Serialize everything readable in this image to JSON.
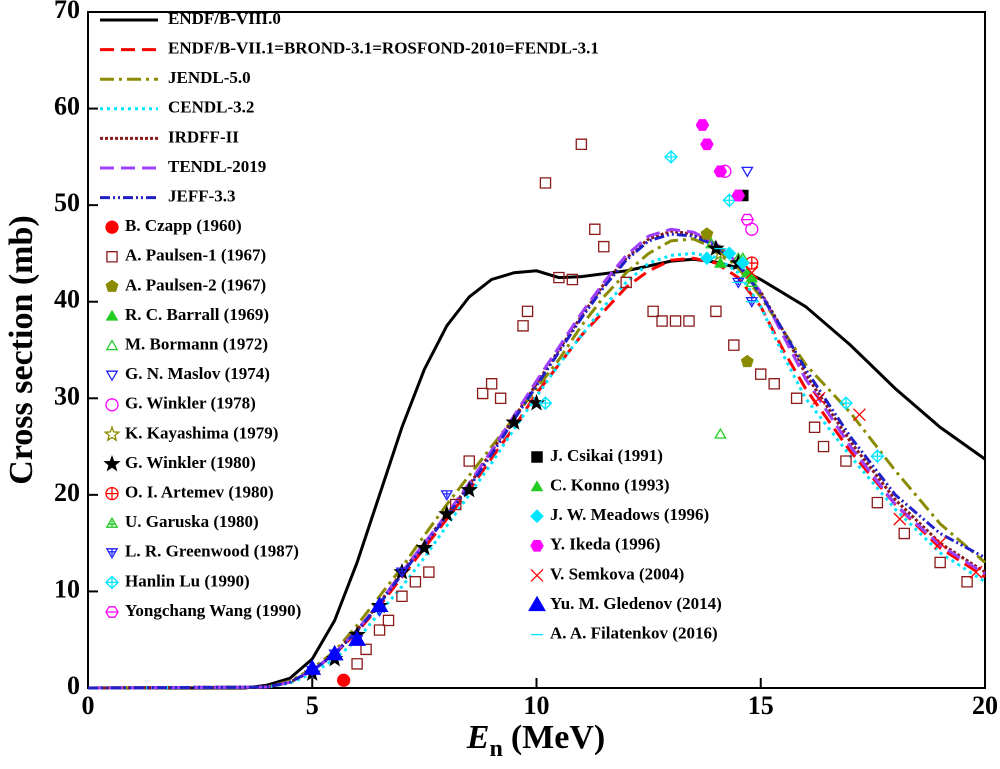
{
  "chart_data": {
    "type": "line",
    "x_label": {
      "symbol": "E",
      "subscript": "n",
      "unit": "(MeV)"
    },
    "y_label": "Cross section (mb)",
    "xlim": [
      0,
      20
    ],
    "xticks": [
      0,
      5,
      10,
      15,
      20
    ],
    "ylim": [
      0,
      70
    ],
    "yticks": [
      0,
      10,
      20,
      30,
      40,
      50,
      60,
      70
    ],
    "legend": "upper left",
    "series": [
      {
        "name": "ENDF/B-VIII.0",
        "color": "#000000",
        "dash": "solid",
        "x": [
          0,
          3.5,
          4,
          4.5,
          5,
          5.5,
          6,
          6.5,
          7,
          7.5,
          8,
          8.5,
          9,
          9.5,
          10,
          10.5,
          11,
          12,
          13,
          13.5,
          14,
          14.5,
          15,
          16,
          17,
          18,
          19,
          20
        ],
        "values": [
          0,
          0,
          0.3,
          1,
          3,
          7,
          13,
          20,
          27,
          33,
          37.5,
          40.5,
          42.3,
          43,
          43.2,
          42.5,
          42.6,
          43.2,
          44.2,
          44.4,
          44.1,
          43.5,
          42.3,
          39.5,
          35.5,
          31,
          27,
          23.7
        ]
      },
      {
        "name": "ENDF/B-VII.1=BROND-3.1=ROSFOND-2010=FENDL-3.1",
        "color": "#ff0000",
        "dash": "long",
        "x": [
          0,
          4,
          4.5,
          5,
          5.5,
          6,
          6.5,
          7,
          7.5,
          8,
          8.5,
          9,
          9.5,
          10,
          10.5,
          11,
          11.5,
          12,
          12.5,
          13,
          13.5,
          14,
          14.5,
          15,
          15.5,
          16,
          17,
          18,
          19,
          20
        ],
        "values": [
          0,
          0.1,
          0.6,
          1.8,
          3.5,
          5.8,
          8.5,
          11.5,
          14.5,
          17.5,
          20.5,
          23.8,
          27,
          30.5,
          33.5,
          36.5,
          39,
          41.5,
          43.2,
          44.3,
          44.5,
          44,
          42.5,
          39.5,
          35,
          31,
          24.5,
          19,
          14.5,
          11.5
        ]
      },
      {
        "name": "JENDL-5.0",
        "color": "#8b8b00",
        "dash": "dashdot",
        "x": [
          0,
          4,
          4.5,
          5,
          5.5,
          6,
          6.5,
          7,
          7.5,
          8,
          8.5,
          9,
          9.5,
          10,
          10.5,
          11,
          11.5,
          12,
          12.5,
          13,
          13.5,
          14,
          14.5,
          15,
          15.5,
          16,
          17,
          18,
          19,
          20
        ],
        "values": [
          0,
          0.1,
          0.7,
          2,
          3.8,
          6.5,
          9.5,
          12.5,
          15.8,
          19,
          22,
          25,
          28,
          31,
          34,
          37.5,
          40.5,
          43,
          45,
          46.3,
          46.5,
          45.5,
          43.5,
          40.5,
          37,
          33.5,
          28.5,
          22.5,
          17,
          13
        ]
      },
      {
        "name": "CENDL-3.2",
        "color": "#00e5ff",
        "dash": "dot",
        "x": [
          0,
          4,
          4.5,
          5,
          5.5,
          6,
          6.5,
          7,
          7.5,
          8,
          8.5,
          9,
          9.5,
          10,
          10.5,
          11,
          11.5,
          12,
          12.5,
          13,
          13.5,
          14,
          14.5,
          15,
          15.5,
          16,
          17,
          18,
          19,
          20
        ],
        "values": [
          0,
          0.1,
          0.5,
          1.5,
          3,
          5,
          7.8,
          10.5,
          13.5,
          16.8,
          20,
          23.3,
          26.8,
          30.2,
          33.5,
          36.5,
          39.5,
          42,
          44,
          44.8,
          45,
          44.6,
          43,
          39.5,
          34.5,
          30,
          24,
          18.5,
          14,
          11
        ]
      },
      {
        "name": "IRDFF-II",
        "color": "#8b1a1a",
        "dash": "shortdot",
        "x": [
          0,
          4,
          4.5,
          5,
          5.5,
          6,
          6.5,
          7,
          7.5,
          8,
          8.5,
          9,
          9.5,
          10,
          10.5,
          11,
          11.5,
          12,
          12.5,
          13,
          13.5,
          14,
          14.5,
          15,
          15.5,
          16,
          17,
          18,
          19,
          20
        ],
        "values": [
          0,
          0.1,
          0.6,
          1.8,
          3.6,
          6,
          8.8,
          12,
          15,
          18,
          21,
          24.5,
          28,
          31.5,
          35,
          38.5,
          41.8,
          44.5,
          46.5,
          47.3,
          47,
          46,
          44,
          41,
          37,
          32.5,
          25.5,
          19.5,
          15,
          12
        ]
      },
      {
        "name": "TENDL-2019",
        "color": "#a040ff",
        "dash": "long",
        "x": [
          0,
          4,
          4.5,
          5,
          5.5,
          6,
          6.5,
          7,
          7.5,
          8,
          8.5,
          9,
          9.5,
          10,
          10.5,
          11,
          11.5,
          12,
          12.5,
          13,
          13.5,
          14,
          14.5,
          15,
          15.5,
          16,
          17,
          18,
          19,
          20
        ],
        "values": [
          0,
          0.1,
          0.6,
          1.8,
          3.6,
          6,
          8.8,
          12,
          15,
          18,
          21.2,
          24.6,
          28.2,
          31.8,
          35.3,
          38.8,
          42,
          44.8,
          46.8,
          47.5,
          47.2,
          46,
          44,
          41,
          36.5,
          32,
          25,
          19,
          14.8,
          11.8
        ]
      },
      {
        "name": "JEFF-3.3",
        "color": "#2020c8",
        "dash": "dashdotdot",
        "x": [
          0,
          4,
          4.5,
          5,
          5.5,
          6,
          6.5,
          7,
          7.5,
          8,
          8.5,
          9,
          9.5,
          10,
          10.5,
          11,
          11.5,
          12,
          12.5,
          13,
          13.5,
          14,
          14.5,
          15,
          15.5,
          16,
          17,
          18,
          19,
          20
        ],
        "values": [
          0,
          0.1,
          0.6,
          1.8,
          3.5,
          5.9,
          8.7,
          11.8,
          14.8,
          17.8,
          20.8,
          24.2,
          27.8,
          31.3,
          34.8,
          38.3,
          41.5,
          44.3,
          46.3,
          47,
          46.8,
          45.8,
          43.8,
          40.8,
          37,
          33,
          26,
          20,
          16,
          13.5
        ]
      },
      {
        "name": "B. Czapp (1960)",
        "color": "#ff0000",
        "marker": "circle",
        "x": [
          5.7
        ],
        "values": [
          0.8
        ]
      },
      {
        "name": "A. Paulsen-1 (1967)",
        "color": "#8b1a1a",
        "marker": "square-open",
        "x": [
          6.0,
          6.2,
          6.5,
          6.7,
          7.0,
          7.3,
          7.6,
          8.2,
          8.5,
          8.8,
          9.0,
          9.2,
          9.7,
          9.8,
          10.2,
          10.5,
          10.8,
          11.0,
          11.3,
          11.5,
          12.0,
          12.6,
          12.8,
          13.1,
          13.4,
          14.0,
          14.4,
          15.0,
          15.3,
          15.8,
          16.2,
          16.4,
          16.9,
          17.6,
          18.2,
          19.0,
          19.6
        ],
        "values": [
          2.5,
          4,
          6,
          7,
          9.5,
          11,
          12,
          19,
          23.5,
          30.5,
          31.5,
          30,
          37.5,
          39,
          52.3,
          42.5,
          42.3,
          56.3,
          47.5,
          45.7,
          42,
          39,
          38,
          38,
          38,
          39,
          35.5,
          32.5,
          31.5,
          30,
          27,
          25,
          23.5,
          19.2,
          16,
          13,
          11
        ]
      },
      {
        "name": "A. Paulsen-2 (1967)",
        "color": "#8b8b00",
        "marker": "pentagon",
        "x": [
          14.7,
          13.8
        ],
        "values": [
          33.8,
          47
        ]
      },
      {
        "name": "R. C. Barrall (1969)",
        "color": "#22cc22",
        "marker": "triangle",
        "x": [
          14.1,
          14.7
        ],
        "values": [
          44,
          43
        ]
      },
      {
        "name": "M. Bormann (1972)",
        "color": "#22cc22",
        "marker": "triangle-open",
        "x": [
          14.1,
          13.9,
          14.5,
          14.8
        ],
        "values": [
          26.3,
          46,
          44.5,
          42
        ]
      },
      {
        "name": "G. N. Maslov (1974)",
        "color": "#2020ff",
        "marker": "triangle-down-open",
        "x": [
          14.7
        ],
        "values": [
          53.5
        ]
      },
      {
        "name": "G. Winkler (1978)",
        "color": "#ff00ff",
        "marker": "circle-open",
        "x": [
          14.2,
          14.8
        ],
        "values": [
          53.5,
          47.5
        ]
      },
      {
        "name": "K. Kayashima (1979)",
        "color": "#8b8b00",
        "marker": "star-open",
        "x": [
          14.1
        ],
        "values": [
          45
        ]
      },
      {
        "name": "G. Winkler (1980)",
        "color": "#000000",
        "marker": "star",
        "x": [
          5.0,
          5.5,
          6.0,
          6.5,
          7.0,
          7.5,
          8.0,
          8.5,
          9.5,
          10.0,
          14.0,
          14.5
        ],
        "values": [
          1.5,
          3,
          5.5,
          8.5,
          12,
          14.5,
          18,
          20.5,
          27.5,
          29.5,
          45.5,
          44
        ]
      },
      {
        "name": "O. I. Artemev (1980)",
        "color": "#ff0000",
        "marker": "circle-plus",
        "x": [
          14.8
        ],
        "values": [
          44
        ]
      },
      {
        "name": "U. Garuska (1980)",
        "color": "#22cc22",
        "marker": "triangle-plus",
        "x": [
          14.6
        ],
        "values": [
          44.5
        ]
      },
      {
        "name": "L. R. Greenwood (1987)",
        "color": "#2020ff",
        "marker": "triangle-down-plus",
        "x": [
          5.0,
          5.5,
          6.0,
          6.5,
          7.0,
          8.0,
          14.5,
          14.8
        ],
        "values": [
          1.8,
          3.5,
          5,
          8,
          12,
          20,
          42,
          40
        ]
      },
      {
        "name": "Hanlin Lu (1990)",
        "color": "#00e5ff",
        "marker": "diamond-plus",
        "x": [
          10.2,
          13.0,
          14.3,
          16.9,
          17.6
        ],
        "values": [
          29.5,
          55,
          50.5,
          29.5,
          24
        ]
      },
      {
        "name": "Yongchang Wang  (1990)",
        "color": "#ff00ff",
        "marker": "hexagon-open",
        "x": [
          14.7
        ],
        "values": [
          48.5
        ]
      },
      {
        "name": "J. Csikai (1991)",
        "color": "#000000",
        "marker": "square-half",
        "x": [
          14.6
        ],
        "values": [
          51
        ]
      },
      {
        "name": "C. Konno (1993)",
        "color": "#22cc22",
        "marker": "triangle",
        "x": [
          14.8
        ],
        "values": [
          42.5
        ]
      },
      {
        "name": "J. W. Meadows (1996)",
        "color": "#00e5ff",
        "marker": "diamond",
        "x": [
          13.8,
          14.3,
          14.6
        ],
        "values": [
          44.5,
          45,
          44
        ]
      },
      {
        "name": "Y. Ikeda (1996)",
        "color": "#ff00ff",
        "marker": "hexagon",
        "x": [
          13.7,
          13.8,
          14.1,
          14.5
        ],
        "values": [
          58.3,
          56.3,
          53.5,
          51
        ]
      },
      {
        "name": "V. Semkova (2004)",
        "color": "#ff0000",
        "marker": "x",
        "x": [
          14.8,
          16.3,
          17.2,
          18.1,
          19.0,
          19.8
        ],
        "values": [
          43,
          30,
          28.3,
          17.5,
          15,
          12
        ]
      },
      {
        "name": "Yu. M. Gledenov (2014)",
        "color": "#0000ff",
        "marker": "triangle-big",
        "x": [
          5.0,
          5.5,
          6.0,
          6.5
        ],
        "values": [
          2,
          3.5,
          5,
          8.5
        ]
      },
      {
        "name": "A. A. Filatenkov (2016)",
        "color": "#00e5ff",
        "marker": "dash",
        "x": [
          14.1,
          14.5,
          14.8
        ],
        "values": [
          45.5,
          42,
          40
        ]
      }
    ]
  }
}
